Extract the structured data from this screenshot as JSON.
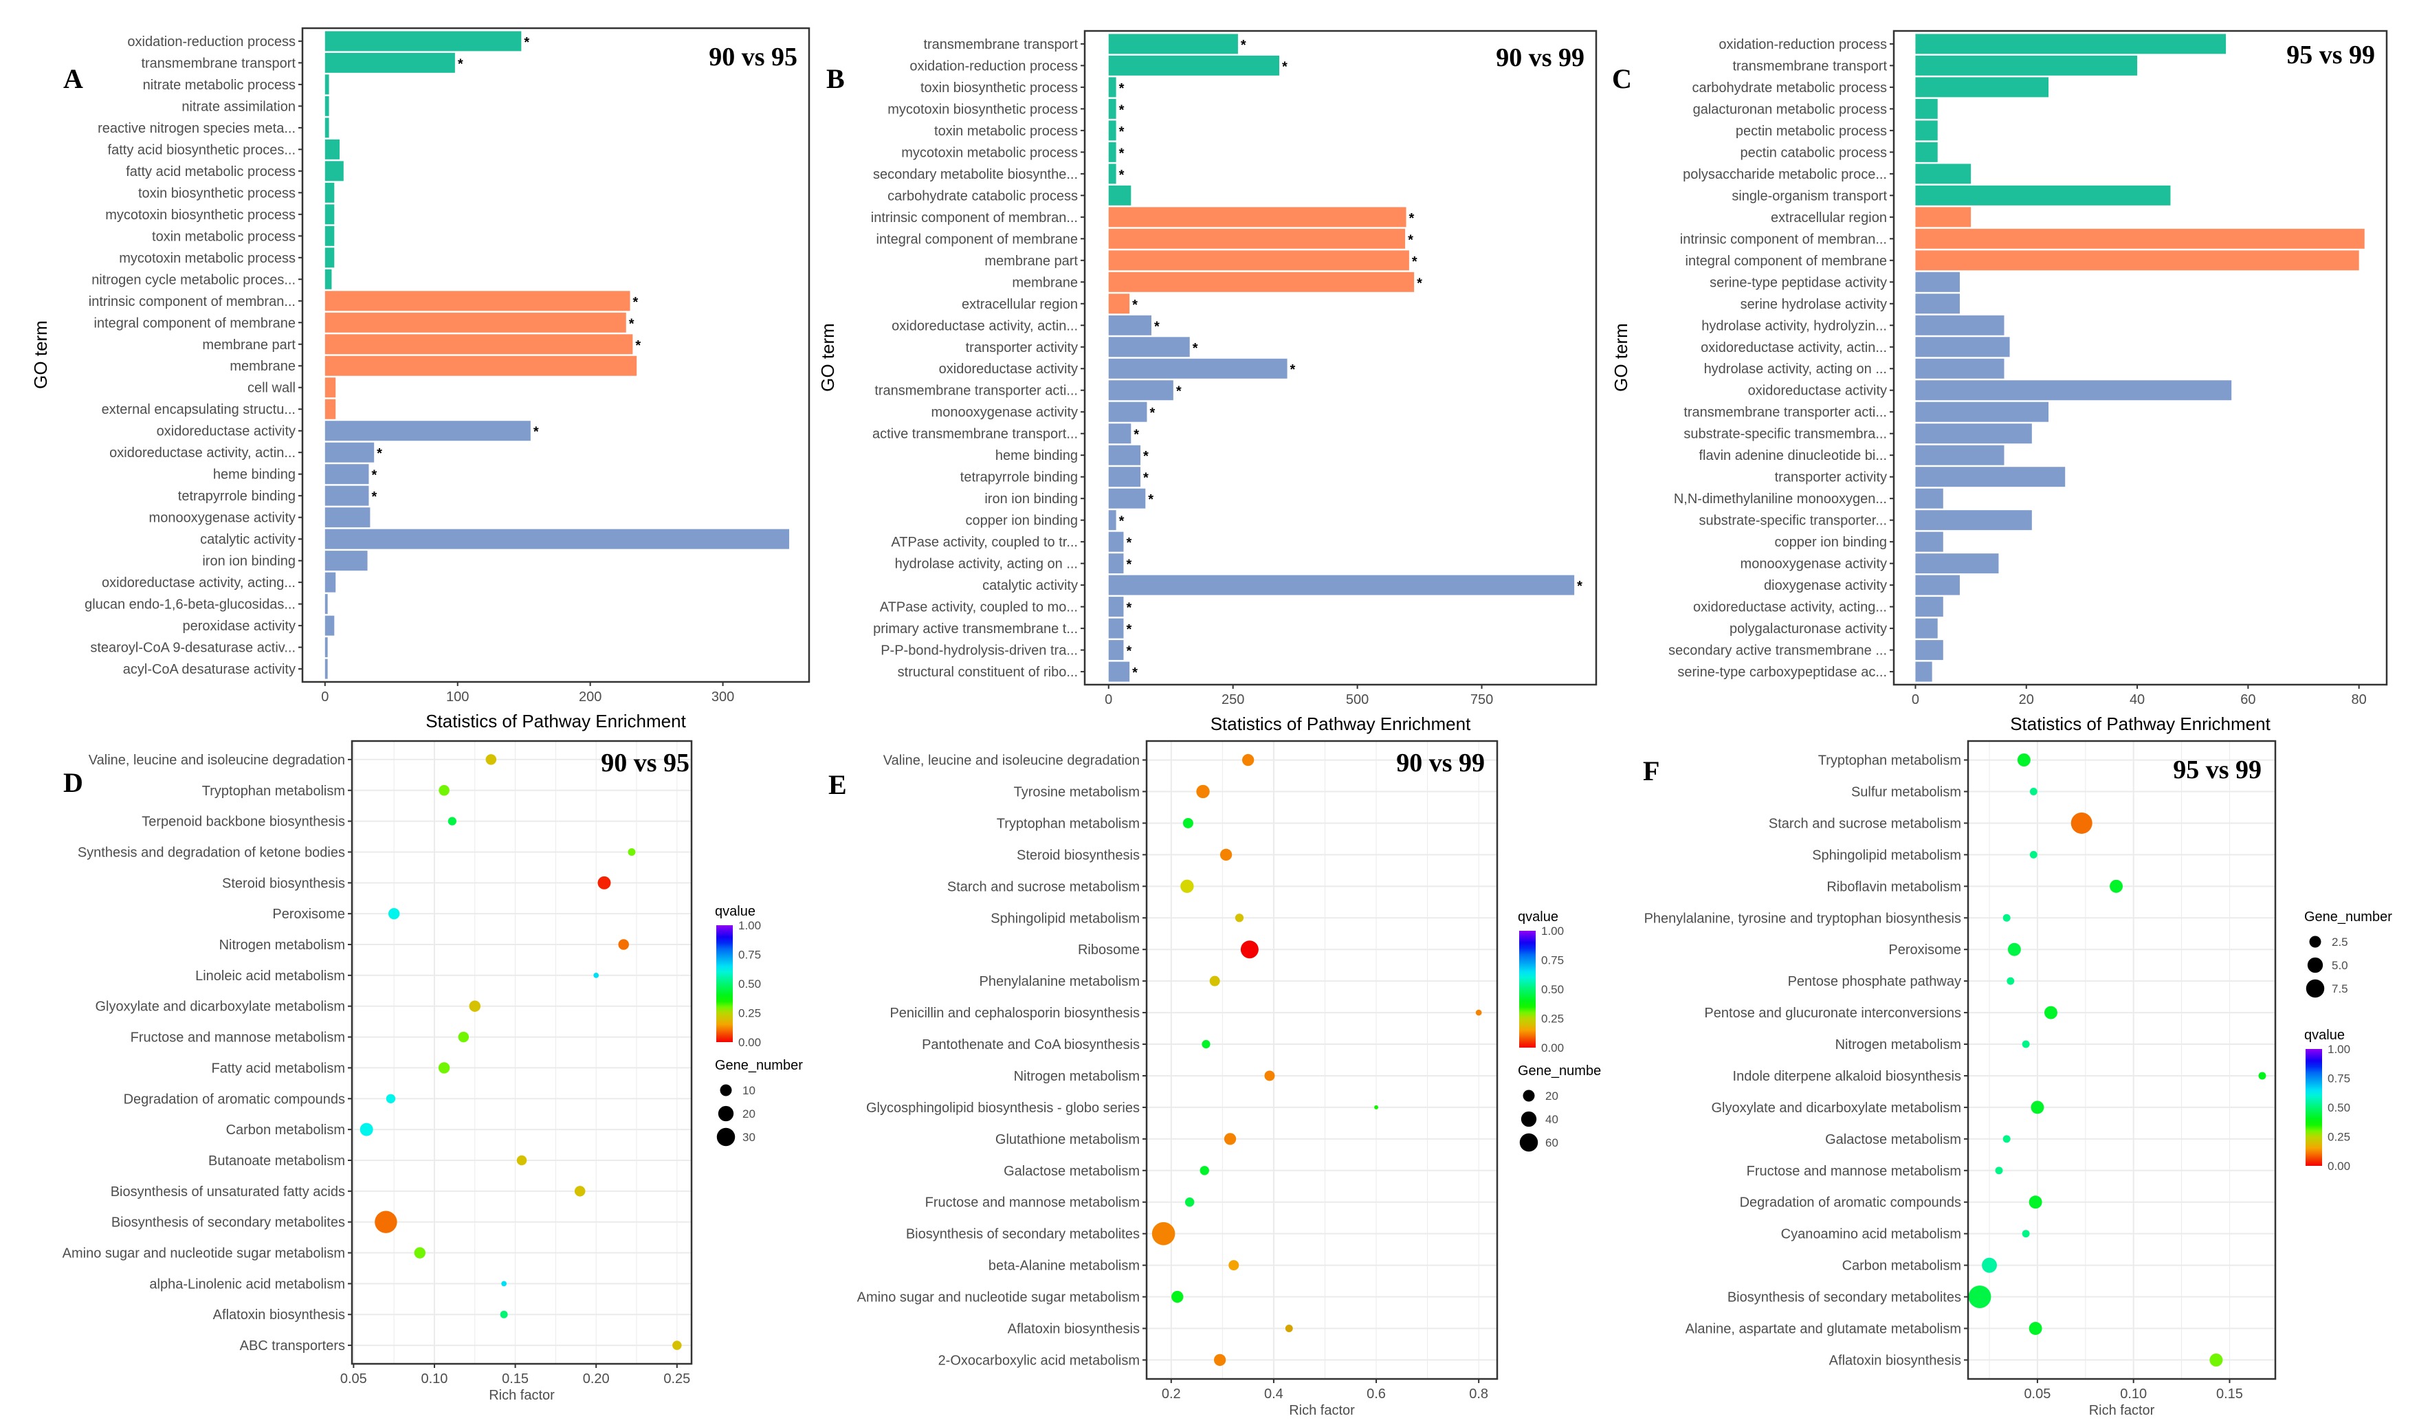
{
  "colors": {
    "biological_process": "#1DBF9B",
    "cellular_component": "#FF8A5B",
    "molecular_function": "#7F9CCC",
    "axis": "#333333",
    "grid": "#EBEBEB"
  },
  "chart_data": [
    {
      "type": "bar",
      "panel": "A",
      "title": "90 vs 95",
      "xlabel": "Statistics of Pathway Enrichment",
      "ylabel": "GO term",
      "xlim": [
        -17,
        365
      ],
      "x_ticks": [
        0,
        100,
        200,
        300
      ],
      "x_tick_labels": [
        "0",
        "100",
        "200",
        "300"
      ],
      "categories": [
        "oxidation-reduction process",
        "transmembrane transport",
        "nitrate metabolic process",
        "nitrate assimilation",
        "reactive nitrogen species meta...",
        "fatty acid biosynthetic proces...",
        "fatty acid metabolic process",
        "toxin biosynthetic process",
        "mycotoxin biosynthetic process",
        "toxin metabolic process",
        "mycotoxin metabolic process",
        "nitrogen cycle metabolic proces...",
        "intrinsic component of membran...",
        "integral component of membrane",
        "membrane part",
        "membrane",
        "cell wall",
        "external encapsulating structu...",
        "oxidoreductase activity",
        "oxidoreductase activity, actin...",
        "heme binding",
        "tetrapyrrole binding",
        "monooxygenase activity",
        "catalytic activity",
        "iron ion binding",
        "oxidoreductase activity, acting...",
        "glucan endo-1,6-beta-glucosidas...",
        "peroxidase activity",
        "stearoyl-CoA 9-desaturase activ...",
        "acyl-CoA desaturase activity"
      ],
      "values": [
        148,
        98,
        3,
        3,
        3,
        11,
        14,
        7,
        7,
        7,
        7,
        5,
        230,
        227,
        232,
        235,
        8,
        8,
        155,
        37,
        33,
        33,
        34,
        350,
        32,
        8,
        2,
        7,
        2,
        2
      ],
      "groups": [
        "BP",
        "BP",
        "BP",
        "BP",
        "BP",
        "BP",
        "BP",
        "BP",
        "BP",
        "BP",
        "BP",
        "BP",
        "CC",
        "CC",
        "CC",
        "CC",
        "CC",
        "CC",
        "MF",
        "MF",
        "MF",
        "MF",
        "MF",
        "MF",
        "MF",
        "MF",
        "MF",
        "MF",
        "MF",
        "MF"
      ],
      "significant": [
        1,
        1,
        0,
        0,
        0,
        0,
        0,
        0,
        0,
        0,
        0,
        0,
        1,
        1,
        1,
        0,
        0,
        0,
        1,
        1,
        1,
        1,
        0,
        0,
        0,
        0,
        0,
        0,
        0,
        0
      ],
      "significance_mark": "*"
    },
    {
      "type": "bar",
      "panel": "B",
      "title": "90 vs 99",
      "xlabel": "Statistics of Pathway Enrichment",
      "ylabel": "GO term",
      "xlim": [
        -48,
        980
      ],
      "x_ticks": [
        0,
        250,
        500,
        750
      ],
      "x_tick_labels": [
        "0",
        "250",
        "500",
        "750"
      ],
      "categories": [
        "transmembrane transport",
        "oxidation-reduction process",
        "toxin biosynthetic process",
        "mycotoxin biosynthetic process",
        "toxin metabolic process",
        "mycotoxin metabolic process",
        "secondary metabolite biosynthe...",
        "carbohydrate catabolic process",
        "intrinsic component of membran...",
        "integral component of membrane",
        "membrane part",
        "membrane",
        "extracellular region",
        "oxidoreductase activity, actin...",
        "transporter activity",
        "oxidoreductase activity",
        "transmembrane transporter acti...",
        "monooxygenase activity",
        "active transmembrane transport...",
        "heme binding",
        "tetrapyrrole binding",
        "iron ion binding",
        "copper ion binding",
        "ATPase activity, coupled to tr...",
        "hydrolase activity, acting on ...",
        "catalytic activity",
        "ATPase activity, coupled to mo...",
        "primary active transmembrane t...",
        "P-P-bond-hydrolysis-driven tra...",
        "structural constituent of ribo..."
      ],
      "values": [
        260,
        343,
        15,
        15,
        15,
        15,
        15,
        45,
        598,
        596,
        604,
        614,
        42,
        86,
        163,
        359,
        130,
        77,
        45,
        64,
        64,
        74,
        15,
        30,
        30,
        936,
        30,
        30,
        30,
        42
      ],
      "groups": [
        "BP",
        "BP",
        "BP",
        "BP",
        "BP",
        "BP",
        "BP",
        "BP",
        "CC",
        "CC",
        "CC",
        "CC",
        "CC",
        "MF",
        "MF",
        "MF",
        "MF",
        "MF",
        "MF",
        "MF",
        "MF",
        "MF",
        "MF",
        "MF",
        "MF",
        "MF",
        "MF",
        "MF",
        "MF",
        "MF"
      ],
      "significant": [
        1,
        1,
        1,
        1,
        1,
        1,
        1,
        0,
        1,
        1,
        1,
        1,
        1,
        1,
        1,
        1,
        1,
        1,
        1,
        1,
        1,
        1,
        1,
        1,
        1,
        1,
        1,
        1,
        1,
        1
      ],
      "significance_mark": "*"
    },
    {
      "type": "bar",
      "panel": "C",
      "title": "95 vs 99",
      "xlabel": "Statistics of Pathway Enrichment",
      "ylabel": "GO term",
      "xlim": [
        -3.9,
        85
      ],
      "x_ticks": [
        0,
        20,
        40,
        60,
        80
      ],
      "x_tick_labels": [
        "0",
        "20",
        "40",
        "60",
        "80"
      ],
      "categories": [
        "oxidation-reduction process",
        "transmembrane transport",
        "carbohydrate metabolic process",
        "galacturonan metabolic process",
        "pectin metabolic process",
        "pectin catabolic process",
        "polysaccharide metabolic proce...",
        "single-organism transport",
        "extracellular region",
        "intrinsic component of membran...",
        "integral component of membrane",
        "serine-type peptidase activity",
        "serine hydrolase activity",
        "hydrolase activity, hydrolyzin...",
        "oxidoreductase activity, actin...",
        "hydrolase activity, acting on ...",
        "oxidoreductase activity",
        "transmembrane transporter acti...",
        "substrate-specific transmembra...",
        "flavin adenine dinucleotide bi...",
        "transporter activity",
        "N,N-dimethylaniline monooxygen...",
        "substrate-specific transporter...",
        "copper ion binding",
        "monooxygenase activity",
        "dioxygenase activity",
        "oxidoreductase activity, acting...",
        "polygalacturonase activity",
        "secondary active transmembrane ...",
        "serine-type carboxypeptidase ac..."
      ],
      "values": [
        56,
        40,
        24,
        4,
        4,
        4,
        10,
        46,
        10,
        81,
        80,
        8,
        8,
        16,
        17,
        16,
        57,
        24,
        21,
        16,
        27,
        5,
        21,
        5,
        15,
        8,
        5,
        4,
        5,
        3
      ],
      "groups": [
        "BP",
        "BP",
        "BP",
        "BP",
        "BP",
        "BP",
        "BP",
        "BP",
        "CC",
        "CC",
        "CC",
        "MF",
        "MF",
        "MF",
        "MF",
        "MF",
        "MF",
        "MF",
        "MF",
        "MF",
        "MF",
        "MF",
        "MF",
        "MF",
        "MF",
        "MF",
        "MF",
        "MF",
        "MF",
        "MF"
      ],
      "significant": [
        0,
        0,
        0,
        0,
        0,
        0,
        0,
        0,
        0,
        0,
        0,
        0,
        0,
        0,
        0,
        0,
        0,
        0,
        0,
        0,
        0,
        0,
        0,
        0,
        0,
        0,
        0,
        0,
        0,
        0
      ],
      "significance_mark": "*"
    },
    {
      "type": "scatter",
      "panel": "D",
      "title": "90 vs 95",
      "xlabel": "Rich factor",
      "ylabel": "",
      "xlim": [
        0.049,
        0.259
      ],
      "x_ticks": [
        0.05,
        0.1,
        0.15,
        0.2,
        0.25
      ],
      "x_tick_labels": [
        "0.05",
        "0.10",
        "0.15",
        "0.20",
        "0.25"
      ],
      "categories": [
        "Valine, leucine and isoleucine degradation",
        "Tryptophan metabolism",
        "Terpenoid backbone biosynthesis",
        "Synthesis and degradation of ketone bodies",
        "Steroid biosynthesis",
        "Peroxisome",
        "Nitrogen metabolism",
        "Linoleic acid metabolism",
        "Glyoxylate and dicarboxylate metabolism",
        "Fructose and mannose metabolism",
        "Fatty acid metabolism",
        "Degradation of aromatic compounds",
        "Carbon metabolism",
        "Butanoate metabolism",
        "Biosynthesis of unsaturated fatty acids",
        "Biosynthesis of secondary metabolites",
        "Amino sugar and nucleotide sugar metabolism",
        "alpha-Linolenic acid metabolism",
        "Aflatoxin biosynthesis",
        "ABC transporters"
      ],
      "rich_factor": [
        0.135,
        0.106,
        0.111,
        0.222,
        0.205,
        0.075,
        0.217,
        0.2,
        0.125,
        0.118,
        0.106,
        0.073,
        0.058,
        0.154,
        0.19,
        0.07,
        0.091,
        0.143,
        0.143,
        0.25
      ],
      "qvalue": [
        0.2,
        0.3,
        0.45,
        0.3,
        0.03,
        0.62,
        0.1,
        0.65,
        0.2,
        0.3,
        0.3,
        0.62,
        0.62,
        0.2,
        0.2,
        0.1,
        0.3,
        0.65,
        0.5,
        0.2
      ],
      "gene_number": [
        8,
        8,
        5,
        4,
        12,
        9,
        8,
        2,
        9,
        8,
        9,
        6,
        12,
        7,
        8,
        35,
        9,
        2,
        4,
        6
      ],
      "color_legend": {
        "title": "qvalue",
        "labels": [
          "1.00",
          "0.75",
          "0.50",
          "0.25",
          "0.00"
        ]
      },
      "size_legend": {
        "title": "Gene_number",
        "values": [
          10,
          20,
          30
        ],
        "labels": [
          "10",
          "20",
          "30"
        ]
      },
      "legend_order": [
        "color",
        "size"
      ]
    },
    {
      "type": "scatter",
      "panel": "E",
      "title": "90 vs 99",
      "xlabel": "Rich factor",
      "ylabel": "",
      "xlim": [
        0.152,
        0.836
      ],
      "x_ticks": [
        0.2,
        0.4,
        0.6,
        0.8
      ],
      "x_tick_labels": [
        "0.2",
        "0.4",
        "0.6",
        "0.8"
      ],
      "categories": [
        "Valine, leucine and isoleucine degradation",
        "Tyrosine metabolism",
        "Tryptophan metabolism",
        "Steroid biosynthesis",
        "Starch and sucrose metabolism",
        "Sphingolipid metabolism",
        "Ribosome",
        "Phenylalanine metabolism",
        "Penicillin and cephalosporin biosynthesis",
        "Pantothenate and CoA biosynthesis",
        "Nitrogen metabolism",
        "Glycosphingolipid biosynthesis - globo series",
        "Glutathione metabolism",
        "Galactose metabolism",
        "Fructose and mannose metabolism",
        "Biosynthesis of secondary metabolites",
        "beta-Alanine metabolism",
        "Amino sugar and nucleotide sugar metabolism",
        "Aflatoxin biosynthesis",
        "2-Oxocarboxylic acid metabolism"
      ],
      "rich_factor": [
        0.35,
        0.262,
        0.233,
        0.307,
        0.231,
        0.333,
        0.353,
        0.285,
        0.8,
        0.268,
        0.392,
        0.6,
        0.315,
        0.265,
        0.236,
        0.185,
        0.322,
        0.212,
        0.43,
        0.295
      ],
      "qvalue": [
        0.12,
        0.12,
        0.42,
        0.12,
        0.22,
        0.2,
        0.0,
        0.2,
        0.12,
        0.42,
        0.12,
        0.35,
        0.12,
        0.42,
        0.45,
        0.12,
        0.15,
        0.4,
        0.17,
        0.12
      ],
      "gene_number": [
        20,
        25,
        15,
        20,
        25,
        10,
        45,
        15,
        5,
        10,
        15,
        2,
        20,
        12,
        12,
        75,
        15,
        20,
        8,
        20
      ],
      "color_legend": {
        "title": "qvalue",
        "labels": [
          "1.00",
          "0.75",
          "0.50",
          "0.25",
          "0.00"
        ]
      },
      "size_legend": {
        "title": "Gene_numbe",
        "values": [
          20,
          40,
          60
        ],
        "labels": [
          "20",
          "40",
          "60"
        ]
      },
      "legend_order": [
        "color",
        "size"
      ]
    },
    {
      "type": "scatter",
      "panel": "F",
      "title": "95 vs 99",
      "xlabel": "Rich factor",
      "ylabel": "",
      "xlim": [
        0.0139,
        0.1738
      ],
      "x_ticks": [
        0.05,
        0.1,
        0.15
      ],
      "x_tick_labels": [
        "0.05",
        "0.10",
        "0.15"
      ],
      "categories": [
        "Tryptophan metabolism",
        "Sulfur metabolism",
        "Starch and sucrose metabolism",
        "Sphingolipid metabolism",
        "Riboflavin metabolism",
        "Phenylalanine, tyrosine and tryptophan biosynthesis",
        "Peroxisome",
        "Pentose phosphate pathway",
        "Pentose and glucuronate interconversions",
        "Nitrogen metabolism",
        "Indole diterpene alkaloid biosynthesis",
        "Glyoxylate and dicarboxylate metabolism",
        "Galactose metabolism",
        "Fructose and mannose metabolism",
        "Degradation of aromatic compounds",
        "Cyanoamino acid metabolism",
        "Carbon metabolism",
        "Biosynthesis of secondary metabolites",
        "Alanine, aspartate and glutamate metabolism",
        "Aflatoxin biosynthesis"
      ],
      "rich_factor": [
        0.043,
        0.048,
        0.073,
        0.048,
        0.091,
        0.034,
        0.038,
        0.036,
        0.057,
        0.044,
        0.167,
        0.05,
        0.034,
        0.03,
        0.049,
        0.044,
        0.025,
        0.02,
        0.049,
        0.143
      ],
      "qvalue": [
        0.42,
        0.52,
        0.1,
        0.52,
        0.42,
        0.52,
        0.45,
        0.52,
        0.42,
        0.52,
        0.4,
        0.42,
        0.52,
        0.52,
        0.42,
        0.52,
        0.55,
        0.45,
        0.42,
        0.3
      ],
      "gene_number": [
        3,
        1,
        8,
        1,
        3,
        1,
        3,
        1,
        3,
        1,
        1,
        3,
        1,
        1,
        3,
        1,
        4,
        9,
        3,
        3
      ],
      "color_legend": {
        "title": "qvalue",
        "labels": [
          "1.00",
          "0.75",
          "0.50",
          "0.25",
          "0.00"
        ]
      },
      "size_legend": {
        "title": "Gene_number",
        "values": [
          2.5,
          5.0,
          7.5
        ],
        "labels": [
          "2.5",
          "5.0",
          "7.5"
        ]
      },
      "legend_order": [
        "size",
        "color"
      ]
    }
  ]
}
